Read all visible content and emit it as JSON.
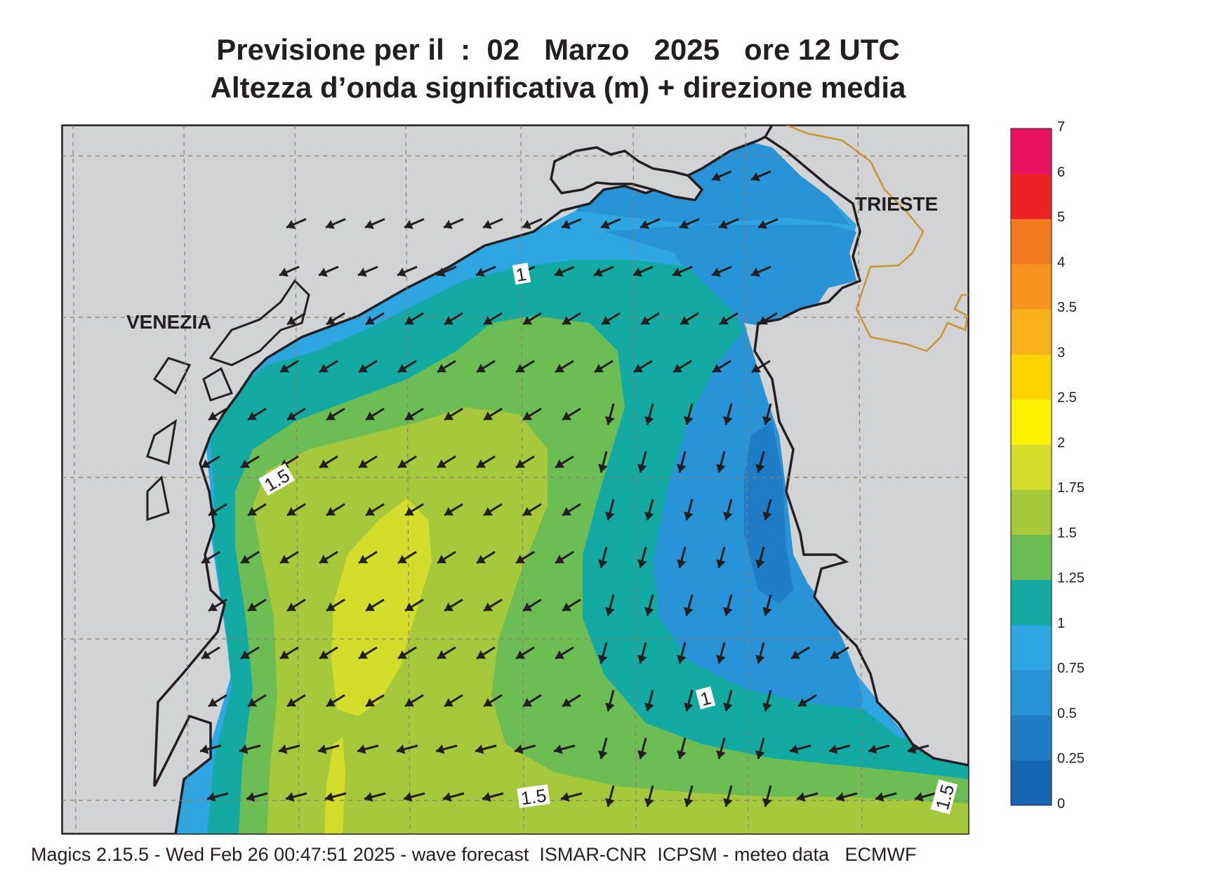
{
  "header": {
    "title_line1": "Previsione per il  :  02   Marzo   2025   ore 12 UTC",
    "title_line2": "Altezza d’onda significativa (m) + direzione media"
  },
  "map": {
    "cities": [
      {
        "name": "VENEZIA"
      },
      {
        "name": "TRIESTE"
      }
    ],
    "contour_labels": [
      "1",
      "1.5",
      "1",
      "1.5",
      "1.5"
    ],
    "arrow_direction": "toward south-west",
    "colors": {
      "land": "#d1d3d4",
      "coast": "#231f20",
      "border": "#c8952e",
      "graticule": "#8c7f6a"
    }
  },
  "colorbar": {
    "tick_labels": [
      "0",
      "0.25",
      "0.5",
      "0.75",
      "1",
      "1.25",
      "1.5",
      "1.75",
      "2",
      "2.5",
      "3",
      "3.5",
      "4",
      "5",
      "6",
      "7"
    ],
    "colors": [
      "#1565b3",
      "#1f7dc7",
      "#2894d7",
      "#2ea6e2",
      "#12aaa3",
      "#6cbd53",
      "#a6c93b",
      "#d4de2a",
      "#fff200",
      "#ffd300",
      "#f9b11b",
      "#f7941d",
      "#f47a20",
      "#ec2227",
      "#e8125e"
    ]
  },
  "footer": {
    "text": "Magics 2.15.5 - Wed Feb 26 00:47:51 2025 - wave forecast  ISMAR-CNR  ICPSM - meteo data   ECMWF"
  }
}
